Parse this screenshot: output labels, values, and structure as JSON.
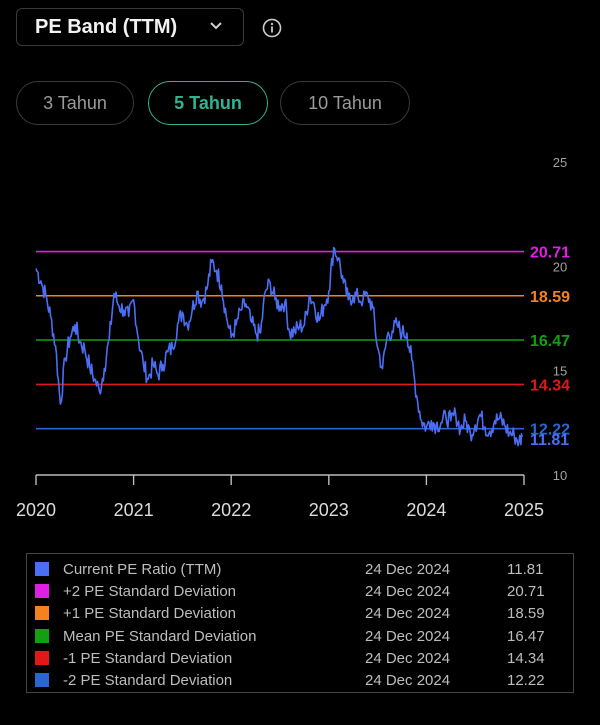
{
  "header": {
    "title": "PE Band (TTM)"
  },
  "tabs": [
    {
      "label": "3 Tahun",
      "active": false
    },
    {
      "label": "5 Tahun",
      "active": true
    },
    {
      "label": "10 Tahun",
      "active": false
    }
  ],
  "colors": {
    "accent": "#2fb391",
    "current": "#4a6ef5",
    "plus2": "#e11ee6",
    "plus1": "#f5821f",
    "mean": "#12a012",
    "minus1": "#e01818",
    "minus2": "#2a66d0"
  },
  "chart_data": {
    "type": "line",
    "y_ticks": [
      "25",
      "20",
      "15",
      "10"
    ],
    "ylim": [
      10,
      25
    ],
    "x_ticks": [
      "2020",
      "2021",
      "2022",
      "2023",
      "2024",
      "2025"
    ],
    "xlim": [
      2020,
      2025
    ],
    "bands": [
      {
        "value": 20.71,
        "label": "20.71",
        "color_key": "plus2"
      },
      {
        "value": 18.59,
        "label": "18.59",
        "color_key": "plus1"
      },
      {
        "value": 16.47,
        "label": "16.47",
        "color_key": "mean"
      },
      {
        "value": 14.34,
        "label": "14.34",
        "color_key": "minus1"
      },
      {
        "value": 12.22,
        "label": "12.22",
        "color_key": "minus2"
      }
    ],
    "current_label": "11.81",
    "series": [
      {
        "x": [
          2020.0,
          2020.05,
          2020.1,
          2020.15,
          2020.2,
          2020.25,
          2020.3,
          2020.35,
          2020.4,
          2020.45,
          2020.5,
          2020.55,
          2020.6,
          2020.65,
          2020.7,
          2020.75,
          2020.8,
          2020.85,
          2020.9,
          2020.95,
          2021.0,
          2021.05,
          2021.1,
          2021.15,
          2021.2,
          2021.25,
          2021.3,
          2021.35,
          2021.4,
          2021.45,
          2021.5,
          2021.55,
          2021.6,
          2021.65,
          2021.7,
          2021.75,
          2021.8,
          2021.85,
          2021.9,
          2021.95,
          2022.0,
          2022.05,
          2022.1,
          2022.15,
          2022.2,
          2022.25,
          2022.3,
          2022.35,
          2022.4,
          2022.45,
          2022.5,
          2022.55,
          2022.6,
          2022.65,
          2022.7,
          2022.75,
          2022.8,
          2022.85,
          2022.9,
          2022.95,
          2023.0,
          2023.05,
          2023.1,
          2023.15,
          2023.2,
          2023.25,
          2023.3,
          2023.35,
          2023.4,
          2023.45,
          2023.5,
          2023.55,
          2023.6,
          2023.65,
          2023.7,
          2023.75,
          2023.8,
          2023.85,
          2023.9,
          2023.95,
          2024.0,
          2024.05,
          2024.1,
          2024.15,
          2024.2,
          2024.25,
          2024.3,
          2024.35,
          2024.4,
          2024.45,
          2024.5,
          2024.55,
          2024.6,
          2024.65,
          2024.7,
          2024.75,
          2024.8,
          2024.85,
          2024.9,
          2024.95,
          2024.98
        ],
        "y": [
          19.9,
          19.3,
          18.6,
          17.6,
          16.2,
          13.4,
          15.6,
          16.6,
          17.2,
          16.4,
          16.0,
          15.2,
          14.6,
          14.0,
          15.1,
          16.5,
          18.7,
          18.1,
          17.9,
          17.6,
          18.4,
          16.5,
          15.3,
          14.6,
          15.3,
          14.8,
          15.3,
          15.9,
          16.1,
          17.2,
          17.8,
          17.2,
          17.9,
          18.8,
          18.3,
          18.9,
          20.2,
          19.8,
          19.1,
          17.6,
          16.6,
          17.2,
          17.9,
          18.2,
          17.4,
          16.8,
          16.8,
          18.8,
          19.2,
          18.4,
          18.1,
          18.3,
          16.8,
          16.9,
          17.1,
          17.2,
          18.6,
          18.2,
          17.4,
          18.1,
          18.8,
          20.9,
          20.4,
          19.2,
          18.4,
          18.6,
          18.5,
          18.4,
          18.6,
          18.0,
          16.1,
          15.1,
          16.7,
          16.9,
          17.2,
          16.8,
          16.8,
          15.5,
          13.8,
          12.6,
          12.3,
          12.6,
          12.4,
          12.5,
          12.8,
          12.6,
          12.9,
          12.2,
          12.6,
          12.0,
          12.4,
          12.9,
          12.3,
          12.1,
          12.6,
          12.7,
          12.4,
          12.0,
          11.9,
          11.6,
          11.81
        ]
      }
    ]
  },
  "legend": [
    {
      "name": "Current PE Ratio (TTM)",
      "date": "24 Dec 2024",
      "value": "11.81",
      "color_key": "current"
    },
    {
      "name": "+2 PE Standard Deviation",
      "date": "24 Dec 2024",
      "value": "20.71",
      "color_key": "plus2"
    },
    {
      "name": "+1 PE Standard Deviation",
      "date": "24 Dec 2024",
      "value": "18.59",
      "color_key": "plus1"
    },
    {
      "name": "Mean PE Standard Deviation",
      "date": "24 Dec 2024",
      "value": "16.47",
      "color_key": "mean"
    },
    {
      "name": "-1 PE Standard Deviation",
      "date": "24 Dec 2024",
      "value": "14.34",
      "color_key": "minus1"
    },
    {
      "name": "-2 PE Standard Deviation",
      "date": "24 Dec 2024",
      "value": "12.22",
      "color_key": "minus2"
    }
  ]
}
